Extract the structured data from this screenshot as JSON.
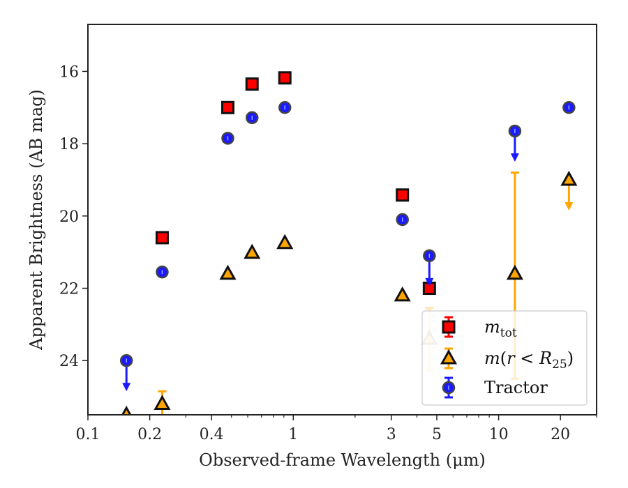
{
  "chart_data": {
    "type": "scatter",
    "title": "",
    "xlabel": "Observed-frame Wavelength (μm)",
    "ylabel": "Apparent Brightness (AB mag)",
    "xscale": "log",
    "xlim": [
      0.1,
      30
    ],
    "ylim": [
      25.5,
      14.7
    ],
    "y_inverted": true,
    "grid": false,
    "legend_position": "lower-right",
    "x_ticks": [
      {
        "value": 0.1,
        "label": "0.1"
      },
      {
        "value": 0.2,
        "label": "0.2"
      },
      {
        "value": 0.4,
        "label": "0.4"
      },
      {
        "value": 1,
        "label": "1"
      },
      {
        "value": 3,
        "label": "3"
      },
      {
        "value": 5,
        "label": "5"
      },
      {
        "value": 10,
        "label": "10"
      },
      {
        "value": 20,
        "label": "20"
      }
    ],
    "y_ticks": [
      {
        "value": 16,
        "label": "16"
      },
      {
        "value": 18,
        "label": "18"
      },
      {
        "value": 20,
        "label": "20"
      },
      {
        "value": 22,
        "label": "22"
      },
      {
        "value": 24,
        "label": "24"
      }
    ],
    "series": [
      {
        "name": "m_tot",
        "legend_label": "mtot",
        "marker": "square",
        "color": "#ff0000",
        "edge_color": "#111111",
        "points": [
          {
            "x": 0.23,
            "y": 20.6
          },
          {
            "x": 0.48,
            "y": 17.0
          },
          {
            "x": 0.63,
            "y": 16.35
          },
          {
            "x": 0.91,
            "y": 16.18
          },
          {
            "x": 3.4,
            "y": 19.42
          },
          {
            "x": 4.6,
            "y": 22.0
          }
        ]
      },
      {
        "name": "m(r < R25)",
        "legend_label": "m(r < R25)",
        "marker": "triangle",
        "color": "#ffa500",
        "edge_color": "#111111",
        "points": [
          {
            "x": 0.154,
            "y": 25.5,
            "upper_limit": true
          },
          {
            "x": 0.23,
            "y": 25.2,
            "yerr": [
              0.35,
              0.4
            ]
          },
          {
            "x": 0.48,
            "y": 21.6
          },
          {
            "x": 0.63,
            "y": 21.02
          },
          {
            "x": 0.91,
            "y": 20.75
          },
          {
            "x": 3.4,
            "y": 22.2
          },
          {
            "x": 4.6,
            "y": 23.4,
            "yerr": [
              0.85,
              0.9
            ],
            "faded": true
          },
          {
            "x": 12.0,
            "y": 21.6,
            "yerr": [
              2.8,
              2.9
            ]
          },
          {
            "x": 22.0,
            "y": 19.0,
            "upper_limit": true
          }
        ]
      },
      {
        "name": "Tractor",
        "legend_label": "Tractor",
        "marker": "circle",
        "color": "#1a1aff",
        "edge_color": "#444444",
        "points": [
          {
            "x": 0.154,
            "y": 24.0,
            "upper_limit": true
          },
          {
            "x": 0.23,
            "y": 21.55
          },
          {
            "x": 0.48,
            "y": 17.85
          },
          {
            "x": 0.63,
            "y": 17.28
          },
          {
            "x": 0.91,
            "y": 17.0
          },
          {
            "x": 3.4,
            "y": 20.1
          },
          {
            "x": 4.6,
            "y": 21.1,
            "upper_limit": true
          },
          {
            "x": 12.0,
            "y": 17.65,
            "upper_limit": true
          },
          {
            "x": 22.0,
            "y": 17.0
          }
        ]
      }
    ]
  }
}
